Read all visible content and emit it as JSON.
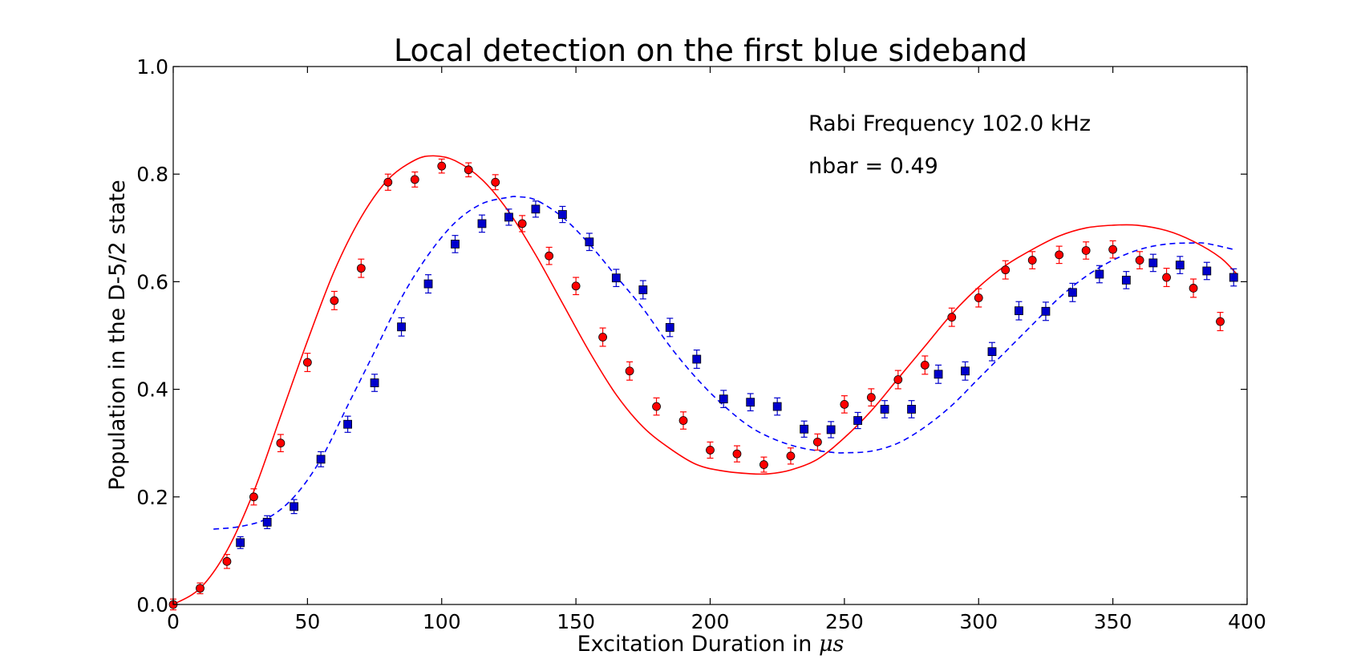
{
  "chart_data": {
    "type": "scatter",
    "title": "Local detection on the first blue sideband",
    "xlabel_prefix": "Excitation Duration in ",
    "xlabel_unit": "μs",
    "ylabel": "Population in the D-5/2 state",
    "xlim": [
      0,
      400
    ],
    "ylim": [
      0,
      1.0
    ],
    "xticks": [
      0,
      50,
      100,
      150,
      200,
      250,
      300,
      350,
      400
    ],
    "yticks": [
      0.0,
      0.2,
      0.4,
      0.6,
      0.8,
      1.0
    ],
    "xtick_labels": [
      "0",
      "50",
      "100",
      "150",
      "200",
      "250",
      "300",
      "350",
      "400"
    ],
    "ytick_labels": [
      "0.0",
      "0.2",
      "0.4",
      "0.6",
      "0.8",
      "1.0"
    ],
    "grid": false,
    "annotations": [
      {
        "text": "Rabi Frequency 102.0 kHz"
      },
      {
        "text": "nbar = 0.49"
      }
    ],
    "colors": {
      "red": "#ff0000",
      "blue": "#0000cc",
      "red_fit": "#ff0000",
      "blue_fit": "#0000ff"
    },
    "series": [
      {
        "marker": "circle",
        "color": "#ff0000",
        "x": [
          0,
          10,
          20,
          30,
          40,
          50,
          60,
          70,
          80,
          90,
          100,
          110,
          120,
          130,
          140,
          150,
          160,
          170,
          180,
          190,
          200,
          210,
          220,
          230,
          240,
          250,
          260,
          270,
          280,
          290,
          300,
          310,
          320,
          330,
          340,
          350,
          360,
          370,
          380,
          390
        ],
        "y": [
          0.0,
          0.03,
          0.08,
          0.2,
          0.3,
          0.45,
          0.565,
          0.625,
          0.785,
          0.79,
          0.815,
          0.808,
          0.785,
          0.708,
          0.648,
          0.592,
          0.497,
          0.434,
          0.368,
          0.342,
          0.287,
          0.28,
          0.26,
          0.276,
          0.302,
          0.372,
          0.385,
          0.418,
          0.445,
          0.534,
          0.57,
          0.622,
          0.64,
          0.65,
          0.658,
          0.66,
          0.64,
          0.608,
          0.588,
          0.526
        ],
        "yerr": [
          0.01,
          0.01,
          0.013,
          0.015,
          0.016,
          0.017,
          0.017,
          0.017,
          0.015,
          0.014,
          0.013,
          0.013,
          0.014,
          0.015,
          0.016,
          0.016,
          0.017,
          0.017,
          0.016,
          0.016,
          0.015,
          0.015,
          0.014,
          0.015,
          0.015,
          0.016,
          0.016,
          0.017,
          0.017,
          0.017,
          0.017,
          0.017,
          0.016,
          0.016,
          0.016,
          0.016,
          0.016,
          0.017,
          0.017,
          0.017
        ]
      },
      {
        "marker": "square",
        "color": "#0000cc",
        "x": [
          25,
          35,
          45,
          55,
          65,
          75,
          85,
          95,
          105,
          115,
          125,
          135,
          145,
          155,
          165,
          175,
          185,
          195,
          205,
          215,
          225,
          235,
          245,
          255,
          265,
          275,
          285,
          295,
          305,
          315,
          325,
          335,
          345,
          355,
          365,
          375,
          385,
          395
        ],
        "y": [
          0.115,
          0.153,
          0.182,
          0.27,
          0.335,
          0.412,
          0.516,
          0.596,
          0.67,
          0.708,
          0.72,
          0.735,
          0.725,
          0.674,
          0.607,
          0.585,
          0.515,
          0.456,
          0.382,
          0.376,
          0.368,
          0.326,
          0.325,
          0.342,
          0.363,
          0.363,
          0.428,
          0.434,
          0.47,
          0.546,
          0.545,
          0.58,
          0.614,
          0.603,
          0.635,
          0.631,
          0.62,
          0.608
        ],
        "yerr": [
          0.011,
          0.012,
          0.013,
          0.014,
          0.015,
          0.016,
          0.017,
          0.017,
          0.016,
          0.016,
          0.015,
          0.015,
          0.015,
          0.016,
          0.016,
          0.017,
          0.017,
          0.017,
          0.016,
          0.016,
          0.016,
          0.015,
          0.015,
          0.015,
          0.016,
          0.016,
          0.017,
          0.017,
          0.017,
          0.017,
          0.017,
          0.017,
          0.016,
          0.016,
          0.016,
          0.016,
          0.016,
          0.016
        ]
      }
    ],
    "fits": [
      {
        "style": "solid",
        "color": "#ff0000",
        "x": [
          0,
          10,
          20,
          30,
          40,
          50,
          60,
          70,
          80,
          90,
          97,
          105,
          115,
          125,
          135,
          145,
          155,
          165,
          175,
          185,
          195,
          205,
          215,
          222,
          230,
          240,
          250,
          260,
          270,
          280,
          290,
          300,
          310,
          320,
          330,
          340,
          350,
          359,
          370,
          380,
          390,
          396
        ],
        "y": [
          0.0,
          0.03,
          0.1,
          0.21,
          0.35,
          0.49,
          0.62,
          0.72,
          0.79,
          0.826,
          0.834,
          0.825,
          0.79,
          0.73,
          0.65,
          0.56,
          0.47,
          0.39,
          0.33,
          0.29,
          0.26,
          0.248,
          0.243,
          0.243,
          0.25,
          0.27,
          0.31,
          0.36,
          0.42,
          0.48,
          0.54,
          0.59,
          0.63,
          0.66,
          0.685,
          0.7,
          0.705,
          0.705,
          0.695,
          0.675,
          0.645,
          0.615
        ]
      },
      {
        "style": "dashed",
        "color": "#0000ff",
        "x": [
          15,
          25,
          35,
          45,
          55,
          65,
          75,
          85,
          95,
          105,
          115,
          125,
          128,
          135,
          145,
          155,
          165,
          175,
          185,
          195,
          205,
          215,
          225,
          235,
          245,
          250,
          260,
          270,
          280,
          290,
          300,
          310,
          320,
          330,
          340,
          350,
          360,
          370,
          380,
          385,
          395
        ],
        "y": [
          0.14,
          0.145,
          0.16,
          0.2,
          0.27,
          0.37,
          0.47,
          0.57,
          0.65,
          0.71,
          0.745,
          0.757,
          0.758,
          0.752,
          0.72,
          0.67,
          0.61,
          0.55,
          0.48,
          0.42,
          0.37,
          0.33,
          0.305,
          0.29,
          0.283,
          0.282,
          0.285,
          0.3,
          0.33,
          0.37,
          0.42,
          0.47,
          0.52,
          0.57,
          0.61,
          0.64,
          0.66,
          0.67,
          0.672,
          0.671,
          0.66
        ]
      }
    ]
  }
}
